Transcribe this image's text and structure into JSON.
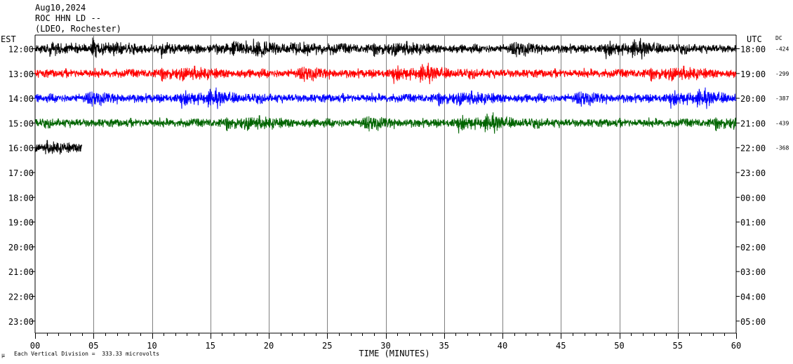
{
  "header": {
    "date": "Aug10,2024",
    "station": "ROC HHN LD --",
    "location": "(LDEO, Rochester)",
    "left_tz": "EST",
    "right_tz": "UTC",
    "dc_label": "DC"
  },
  "footer": {
    "scale_note": "Each Vertical Division =  333.33 microvolts",
    "corner_mark": "μ"
  },
  "chart_data": {
    "type": "line",
    "title": "",
    "xlabel": "TIME (MINUTES)",
    "ylabel": "",
    "xlim": [
      0,
      60
    ],
    "x_ticks": [
      "00",
      "05",
      "10",
      "15",
      "20",
      "25",
      "30",
      "35",
      "40",
      "45",
      "50",
      "55",
      "60"
    ],
    "grid": "vertical lines every 5 minutes",
    "left_hours": [
      "12:00",
      "13:00",
      "14:00",
      "15:00",
      "16:00",
      "17:00",
      "18:00",
      "19:00",
      "20:00",
      "21:00",
      "22:00",
      "23:00"
    ],
    "right_hours": [
      "18:00",
      "19:00",
      "20:00",
      "21:00",
      "22:00",
      "23:00",
      "00:00",
      "01:00",
      "02:00",
      "03:00",
      "04:00",
      "05:00"
    ],
    "series": [
      {
        "row": 0,
        "color": "#000000",
        "minutes": 60,
        "dc": "-424"
      },
      {
        "row": 1,
        "color": "#ff0000",
        "minutes": 60,
        "dc": "-299"
      },
      {
        "row": 2,
        "color": "#0000ff",
        "minutes": 60,
        "dc": "-387"
      },
      {
        "row": 3,
        "color": "#006400",
        "minutes": 60,
        "dc": "-439"
      },
      {
        "row": 4,
        "color": "#000000",
        "minutes": 4,
        "dc": "-368"
      }
    ]
  }
}
